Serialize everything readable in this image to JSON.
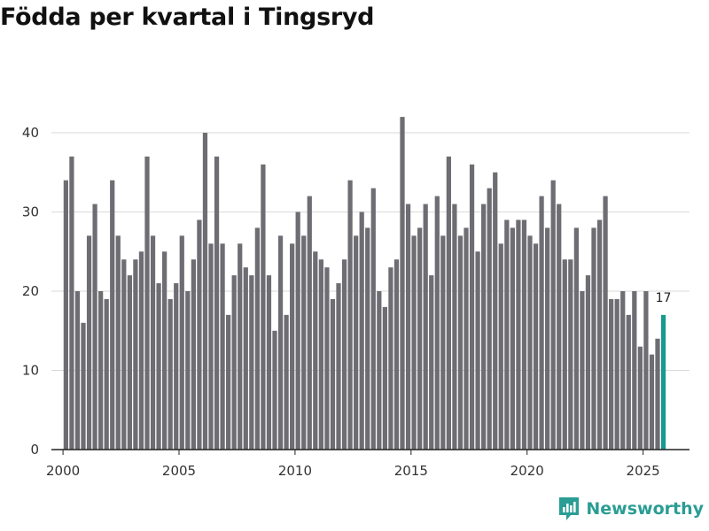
{
  "title": "Födda per kvartal i Tingsryd",
  "brand": "Newsworthy",
  "colors": {
    "bar": "#6e6d73",
    "highlight": "#1a9a8e",
    "grid": "#d9d9d9",
    "axis": "#222222",
    "brand": "#2a9d94"
  },
  "chart_data": {
    "type": "bar",
    "title": "Födda per kvartal i Tingsryd",
    "xlabel": "",
    "ylabel": "",
    "xlim": [
      1999.5,
      2027
    ],
    "ylim": [
      0,
      42
    ],
    "yticks": [
      0,
      10,
      20,
      30,
      40
    ],
    "xticks": [
      2000,
      2005,
      2010,
      2015,
      2020,
      2025
    ],
    "grid": true,
    "start": "2000 Q1",
    "highlight_label": "17",
    "values": [
      34,
      37,
      20,
      16,
      27,
      31,
      20,
      19,
      34,
      27,
      24,
      22,
      24,
      25,
      37,
      27,
      21,
      25,
      19,
      21,
      27,
      20,
      24,
      29,
      40,
      26,
      37,
      26,
      17,
      22,
      26,
      23,
      22,
      28,
      36,
      22,
      15,
      27,
      17,
      26,
      30,
      27,
      32,
      25,
      24,
      23,
      19,
      21,
      24,
      34,
      27,
      30,
      28,
      33,
      20,
      18,
      23,
      24,
      42,
      31,
      27,
      28,
      31,
      22,
      32,
      27,
      37,
      31,
      27,
      28,
      36,
      25,
      31,
      33,
      35,
      26,
      29,
      28,
      29,
      29,
      27,
      26,
      32,
      28,
      34,
      31,
      24,
      24,
      28,
      20,
      22,
      28,
      29,
      32,
      19,
      19,
      20,
      17,
      20,
      13,
      20,
      12,
      14,
      17
    ]
  }
}
